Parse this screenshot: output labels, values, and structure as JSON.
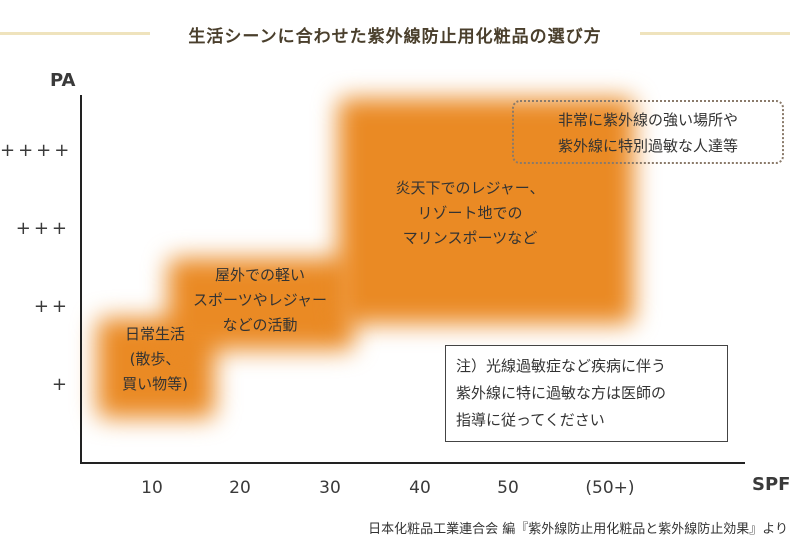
{
  "title": "生活シーンに合わせた紫外線防止用化粧品の選び方",
  "y_axis": {
    "label": "PA",
    "ticks": [
      "++++",
      "+++",
      "++",
      "+"
    ]
  },
  "x_axis": {
    "label": "SPF",
    "ticks": [
      "10",
      "20",
      "30",
      "40",
      "50",
      "(50+)"
    ]
  },
  "regions": [
    {
      "lines": [
        "日常生活",
        "(散歩、",
        "買い物等)"
      ],
      "spf": "10",
      "pa": "+"
    },
    {
      "lines": [
        "屋外での軽い",
        "スポーツやレジャー",
        "などの活動"
      ],
      "spf": "20-30",
      "pa": "++"
    },
    {
      "lines": [
        "炎天下でのレジャー、",
        "リゾート地での",
        "マリンスポーツなど"
      ],
      "spf": "30-50+",
      "pa": "+++ - ++++"
    }
  ],
  "extreme_box": {
    "lines": [
      "非常に紫外線の強い場所や",
      "紫外線に特別過敏な人達等"
    ]
  },
  "note": {
    "lines": [
      "注）光線過敏症など疾病に伴う",
      "紫外線に特に過敏な方は医師の",
      "指導に従ってください"
    ]
  },
  "footer": "日本化粧品工業連合会 編『紫外線防止用化粧品と紫外線防止効果』より",
  "colors": {
    "region_fill": "#ea8a24",
    "title_rule": "#efe3bd"
  }
}
